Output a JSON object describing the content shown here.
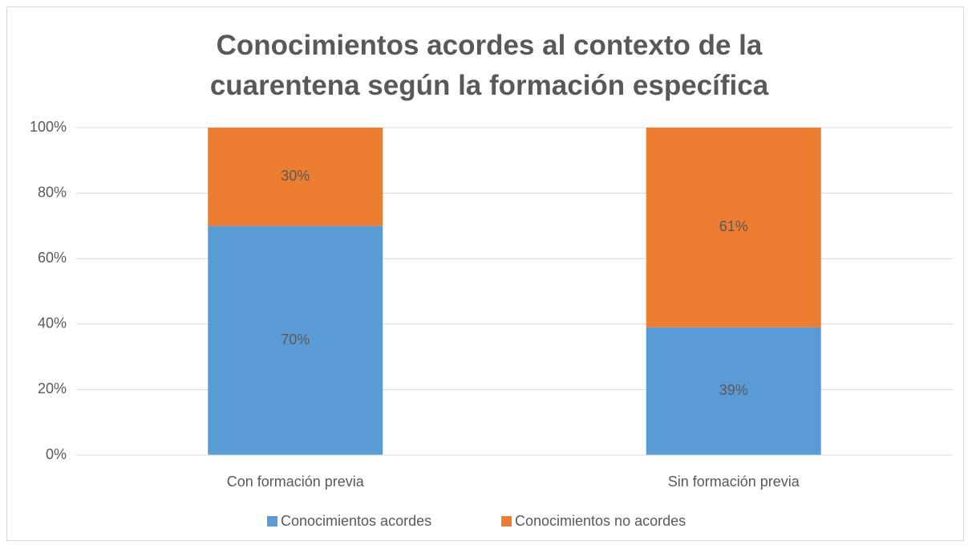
{
  "chart_data": {
    "type": "stacked_bar",
    "title": "Conocimientos acordes al contexto de la cuarentena según la formación específica",
    "categories": [
      "Con formación previa",
      "Sin formación previa"
    ],
    "series": [
      {
        "name": "Conocimientos acordes",
        "color": "#5b9bd5",
        "values": [
          70,
          39
        ],
        "value_labels": [
          "70%",
          "39%"
        ]
      },
      {
        "name": "Conocimientos no acordes",
        "color": "#ed7d31",
        "values": [
          30,
          61
        ],
        "value_labels": [
          "30%",
          "61%"
        ]
      }
    ],
    "ylim": [
      0,
      100
    ],
    "yticks": [
      {
        "value": 0,
        "label": "0%"
      },
      {
        "value": 20,
        "label": "20%"
      },
      {
        "value": 40,
        "label": "40%"
      },
      {
        "value": 60,
        "label": "60%"
      },
      {
        "value": 80,
        "label": "80%"
      },
      {
        "value": 100,
        "label": "100%"
      }
    ],
    "grid": true,
    "legend": "bottom"
  }
}
